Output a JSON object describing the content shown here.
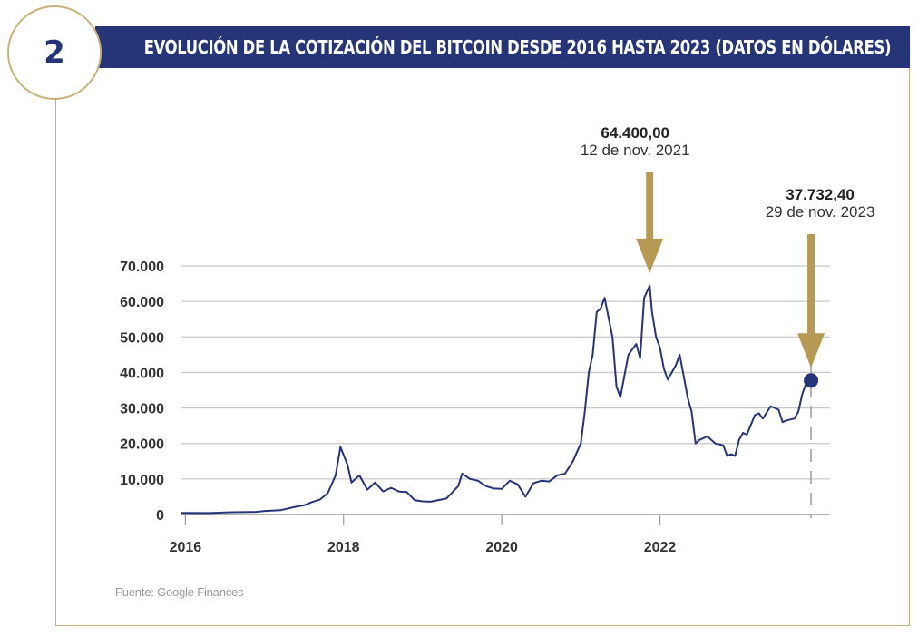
{
  "header": {
    "badge_number": "2",
    "title": "EVOLUCIÓN DE LA COTIZACIÓN DEL BITCOIN DESDE 2016 HASTA 2023 (DATOS EN DÓLARES)"
  },
  "source_note": "Fuente: Google Finances",
  "colors": {
    "navy": "#253577",
    "gold": "#b69a53",
    "grid": "#c8c8c8",
    "axis_text": "#333333"
  },
  "chart_data": {
    "type": "line",
    "title": "",
    "xlabel": "",
    "ylabel": "",
    "xlim": [
      2015.95,
      2024.15
    ],
    "ylim": [
      0,
      70000
    ],
    "y_ticks": [
      0,
      10000,
      20000,
      30000,
      40000,
      50000,
      60000,
      70000
    ],
    "y_tick_labels": [
      "0",
      "10.000",
      "20.000",
      "30.000",
      "40.000",
      "50.000",
      "60.000",
      "70.000"
    ],
    "x_ticks": [
      2016,
      2018,
      2020,
      2022
    ],
    "x_tick_labels": [
      "2016",
      "2018",
      "2020",
      "2022"
    ],
    "grid": true,
    "series": [
      {
        "name": "",
        "color": "#253577",
        "x": [
          2015.95,
          2016.3,
          2016.6,
          2016.9,
          2017.0,
          2017.2,
          2017.4,
          2017.5,
          2017.6,
          2017.7,
          2017.8,
          2017.9,
          2017.96,
          2018.05,
          2018.1,
          2018.2,
          2018.3,
          2018.4,
          2018.5,
          2018.6,
          2018.7,
          2018.8,
          2018.9,
          2019.0,
          2019.1,
          2019.3,
          2019.45,
          2019.5,
          2019.6,
          2019.7,
          2019.8,
          2019.9,
          2020.0,
          2020.1,
          2020.2,
          2020.3,
          2020.4,
          2020.5,
          2020.6,
          2020.7,
          2020.8,
          2020.9,
          2021.0,
          2021.05,
          2021.1,
          2021.15,
          2021.2,
          2021.25,
          2021.3,
          2021.4,
          2021.45,
          2021.5,
          2021.6,
          2021.7,
          2021.75,
          2021.8,
          2021.87,
          2021.9,
          2021.95,
          2022.0,
          2022.05,
          2022.1,
          2022.2,
          2022.25,
          2022.3,
          2022.35,
          2022.4,
          2022.45,
          2022.5,
          2022.6,
          2022.7,
          2022.8,
          2022.85,
          2022.9,
          2022.95,
          2023.0,
          2023.05,
          2023.1,
          2023.2,
          2023.25,
          2023.3,
          2023.4,
          2023.5,
          2023.55,
          2023.6,
          2023.7,
          2023.75,
          2023.8,
          2023.85,
          2023.91
        ],
        "y": [
          430,
          420,
          650,
          750,
          1000,
          1200,
          2200,
          2600,
          3500,
          4200,
          6000,
          11000,
          19000,
          14000,
          9000,
          11000,
          7000,
          9000,
          6500,
          7500,
          6500,
          6300,
          4000,
          3700,
          3600,
          4500,
          8000,
          11500,
          10000,
          9500,
          8000,
          7300,
          7200,
          9500,
          8500,
          5000,
          8800,
          9500,
          9300,
          11000,
          11500,
          15000,
          20000,
          29000,
          40000,
          45000,
          57000,
          58000,
          61000,
          50000,
          36000,
          33000,
          45000,
          48000,
          44000,
          61000,
          64400,
          57000,
          50000,
          47000,
          41000,
          38000,
          42000,
          45000,
          39000,
          33000,
          29000,
          20000,
          21000,
          22000,
          20000,
          19500,
          16500,
          17000,
          16500,
          21000,
          23000,
          22500,
          28000,
          28500,
          27000,
          30500,
          29500,
          26000,
          26500,
          27000,
          29000,
          34000,
          37000,
          37732.4
        ]
      }
    ],
    "annotations": [
      {
        "value_label": "64.400,00",
        "date_label": "12 de nov. 2021",
        "x": 2021.87,
        "y": 64400
      },
      {
        "value_label": "37.732,40",
        "date_label": "29 de nov. 2023",
        "x": 2023.91,
        "y": 37732.4
      }
    ]
  }
}
